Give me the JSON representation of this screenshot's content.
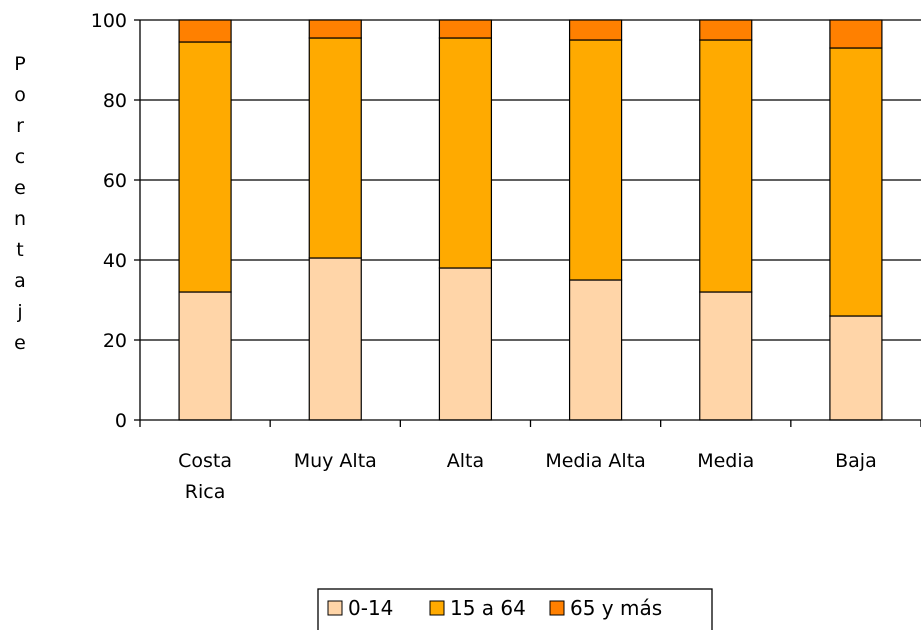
{
  "chart_data": {
    "type": "bar",
    "stacked": true,
    "categories": [
      [
        "Costa",
        "Rica"
      ],
      [
        "Muy Alta"
      ],
      [
        "Alta"
      ],
      [
        "Media Alta"
      ],
      [
        "Media"
      ],
      [
        "Baja"
      ]
    ],
    "series": [
      {
        "name": "0-14",
        "color": "#FFD5A8",
        "values": [
          32,
          40.5,
          38,
          35,
          32,
          26
        ]
      },
      {
        "name": "15 a 64",
        "color": "#FFAA00",
        "values": [
          62.5,
          55,
          57.5,
          60,
          63,
          67
        ]
      },
      {
        "name": "65 y más",
        "color": "#FF8000",
        "values": [
          5.5,
          4.5,
          4.5,
          5,
          5,
          7
        ]
      }
    ],
    "ylabel": "Porcentaje",
    "xlabel": "",
    "ylim": [
      0,
      100
    ],
    "yticks": [
      0,
      20,
      40,
      60,
      80,
      100
    ],
    "grid": true,
    "legend_position": "bottom"
  }
}
